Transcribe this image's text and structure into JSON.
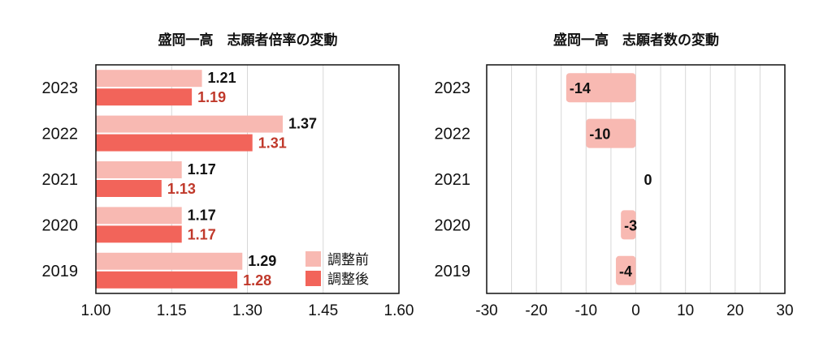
{
  "colors": {
    "before": "#f8b9b2",
    "after": "#f2645a",
    "after_label": "#c0392b",
    "grid": "#d7d7d7",
    "axis": "#111111"
  },
  "chart_data": [
    {
      "type": "bar",
      "orientation": "horizontal",
      "title": "盛岡一高　志願者倍率の変動",
      "categories": [
        "2023",
        "2022",
        "2021",
        "2020",
        "2019"
      ],
      "series": [
        {
          "name": "調整前",
          "values": [
            1.21,
            1.37,
            1.17,
            1.17,
            1.29
          ],
          "labels": [
            "1.21",
            "1.37",
            "1.17",
            "1.17",
            "1.29"
          ]
        },
        {
          "name": "調整後",
          "values": [
            1.19,
            1.31,
            1.13,
            1.17,
            1.28
          ],
          "labels": [
            "1.19",
            "1.31",
            "1.13",
            "1.17",
            "1.28"
          ]
        }
      ],
      "xlim": [
        1.0,
        1.6
      ],
      "xticks": [
        "1.00",
        "1.15",
        "1.30",
        "1.45",
        "1.60"
      ],
      "grid": true,
      "legend": "bottom-right"
    },
    {
      "type": "bar",
      "orientation": "horizontal",
      "title": "盛岡一高　志願者数の変動",
      "categories": [
        "2023",
        "2022",
        "2021",
        "2020",
        "2019"
      ],
      "values": [
        -14,
        -10,
        0,
        -3,
        -4
      ],
      "labels": [
        "-14",
        "-10",
        "0",
        "-3",
        "-4"
      ],
      "xlim": [
        -30,
        30
      ],
      "xticks": [
        "-30",
        "-20",
        "-10",
        "0",
        "10",
        "20",
        "30"
      ],
      "grid": true
    }
  ]
}
